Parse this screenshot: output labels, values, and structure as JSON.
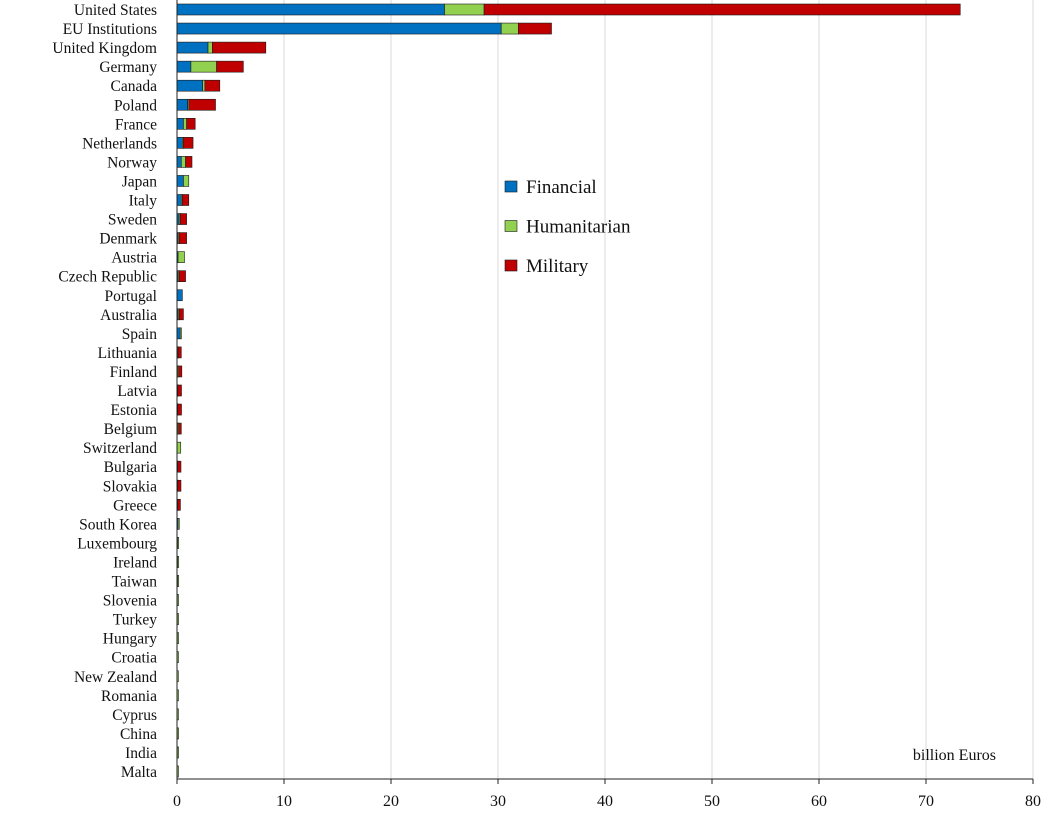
{
  "chart_data": {
    "type": "bar",
    "orientation": "horizontal",
    "stacked": true,
    "categories": [
      "United States",
      "EU Institutions",
      "United Kingdom",
      "Germany",
      "Canada",
      "Poland",
      "France",
      "Netherlands",
      "Norway",
      "Japan",
      "Italy",
      "Sweden",
      "Denmark",
      "Austria",
      "Czech Republic",
      "Portugal",
      "Australia",
      "Spain",
      "Lithuania",
      "Finland",
      "Latvia",
      "Estonia",
      "Belgium",
      "Switzerland",
      "Bulgaria",
      "Slovakia",
      "Greece",
      "South Korea",
      "Luxembourg",
      "Ireland",
      "Taiwan",
      "Slovenia",
      "Turkey",
      "Hungary",
      "Croatia",
      "New Zealand",
      "Romania",
      "Cyprus",
      "China",
      "India",
      "Malta"
    ],
    "series": [
      {
        "name": "Financial",
        "color": "#0070c0",
        "values": [
          25.0,
          30.3,
          2.9,
          1.3,
          2.4,
          1.0,
          0.6,
          0.5,
          0.4,
          0.6,
          0.4,
          0.2,
          0.1,
          0.1,
          0.1,
          0.5,
          0.1,
          0.3,
          0.05,
          0.05,
          0.02,
          0.02,
          0.05,
          0.0,
          0.02,
          0.02,
          0.02,
          0.1,
          0.05,
          0.05,
          0.05,
          0.03,
          0.03,
          0.03,
          0.02,
          0.01,
          0.02,
          0.02,
          0.03,
          0.03,
          0.02
        ]
      },
      {
        "name": "Humanitarian",
        "color": "#92d050",
        "values": [
          3.7,
          1.6,
          0.4,
          2.4,
          0.2,
          0.1,
          0.3,
          0.1,
          0.4,
          0.5,
          0.1,
          0.1,
          0.1,
          0.6,
          0.1,
          0.0,
          0.1,
          0.05,
          0.05,
          0.1,
          0.05,
          0.05,
          0.1,
          0.35,
          0.05,
          0.05,
          0.05,
          0.1,
          0.1,
          0.1,
          0.05,
          0.05,
          0.05,
          0.05,
          0.05,
          0.05,
          0.05,
          0.05,
          0.05,
          0.05,
          0.05
        ]
      },
      {
        "name": "Military",
        "color": "#c00000",
        "values": [
          44.5,
          3.1,
          5.0,
          2.5,
          1.4,
          2.5,
          0.8,
          0.9,
          0.6,
          0.0,
          0.6,
          0.6,
          0.7,
          0.0,
          0.6,
          0.0,
          0.4,
          0.0,
          0.3,
          0.3,
          0.35,
          0.35,
          0.25,
          0.0,
          0.3,
          0.3,
          0.25,
          0.0,
          0.0,
          0.0,
          0.0,
          0.0,
          0.0,
          0.0,
          0.0,
          0.0,
          0.0,
          0.0,
          0.0,
          0.0,
          0.0
        ]
      }
    ],
    "xlim": [
      0,
      80
    ],
    "xticks": [
      0,
      10,
      20,
      30,
      40,
      50,
      60,
      70,
      80
    ],
    "unit_label": "billion Euros",
    "legend_position": "center",
    "grid": "vertical"
  }
}
